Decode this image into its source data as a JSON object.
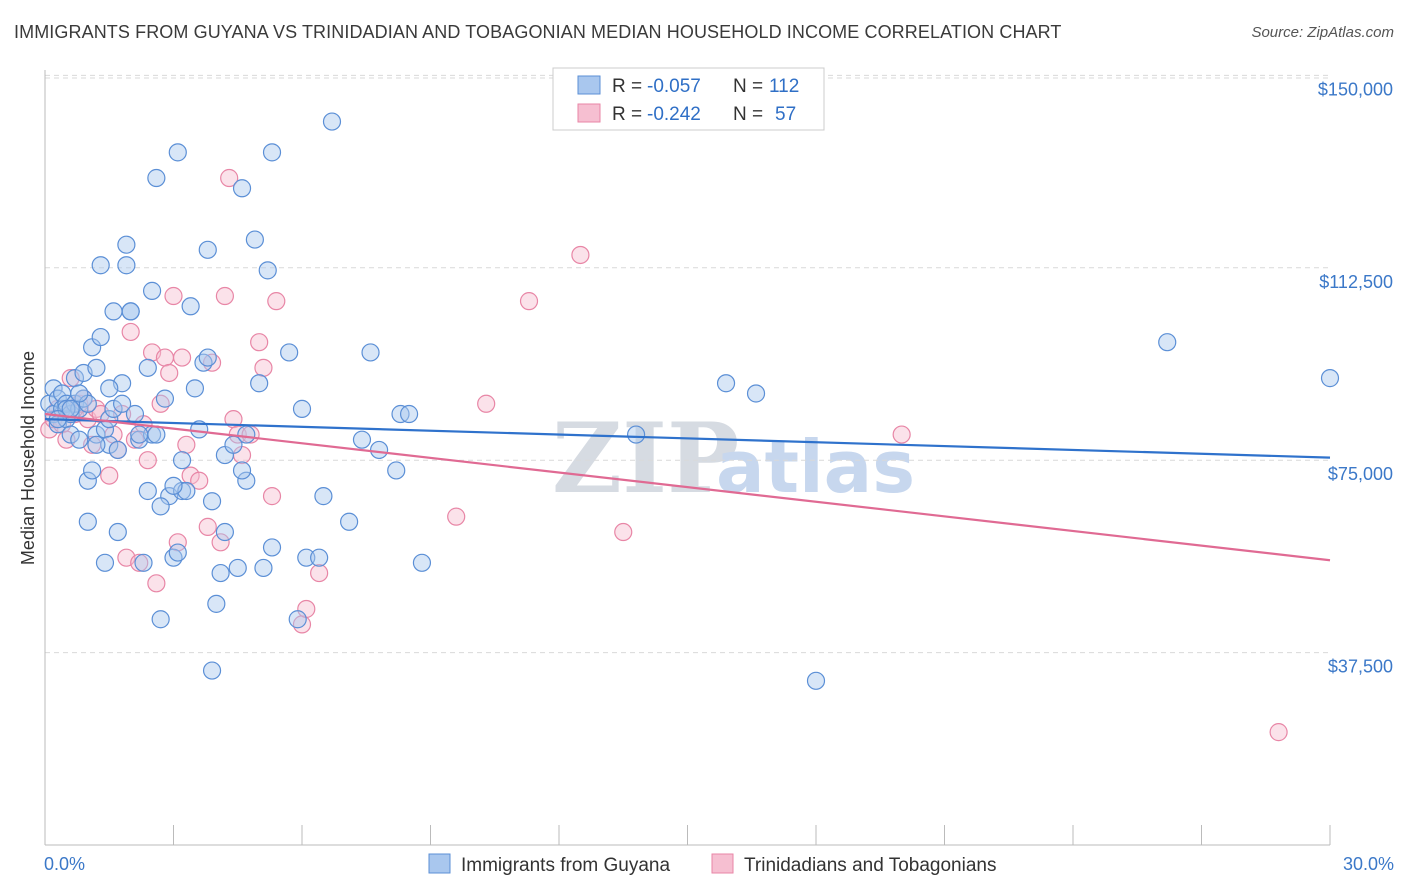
{
  "title": "IMMIGRANTS FROM GUYANA VS TRINIDADIAN AND TOBAGONIAN MEDIAN HOUSEHOLD INCOME CORRELATION CHART",
  "source": "Source: ZipAtlas.com",
  "watermark": {
    "zip": "ZIP",
    "atlas": "atlas"
  },
  "colors": {
    "blue_fill": "#a9c7ee",
    "blue_stroke": "#5b8fd6",
    "blue_line": "#2f72cc",
    "pink_fill": "#f6bfd1",
    "pink_stroke": "#e886a6",
    "pink_line": "#e06a93",
    "tick_text": "#3b78c8",
    "grid": "#d9d9d9"
  },
  "legend": {
    "rows": [
      {
        "r_label": "R =",
        "r_value": "-0.057",
        "n_label": "N =",
        "n_value": "112",
        "color": "blue"
      },
      {
        "r_label": "R =",
        "r_value": "-0.242",
        "n_label": "N =",
        "n_value": "57",
        "color": "pink"
      }
    ]
  },
  "chart_data": {
    "type": "scatter",
    "title": "IMMIGRANTS FROM GUYANA VS TRINIDADIAN AND TOBAGONIAN MEDIAN HOUSEHOLD INCOME CORRELATION CHART",
    "xlabel": "",
    "ylabel": "Median Household Income",
    "xlim": [
      0,
      30
    ],
    "ylim": [
      0,
      153000
    ],
    "x_tick_labels": [
      "0.0%",
      "30.0%"
    ],
    "y_ticks": [
      37500,
      75000,
      112500,
      150000
    ],
    "y_tick_labels": [
      "$37,500",
      "$75,000",
      "$112,500",
      "$150,000"
    ],
    "grid": true,
    "legend_position": "top-center",
    "series": [
      {
        "name": "Immigrants from Guyana",
        "color": "#a9c7ee",
        "trend": {
          "x": [
            0,
            30
          ],
          "y": [
            83000,
            75500
          ]
        },
        "points": [
          [
            0.1,
            86000
          ],
          [
            0.2,
            84000
          ],
          [
            0.2,
            89000
          ],
          [
            0.3,
            87000
          ],
          [
            0.3,
            82000
          ],
          [
            0.4,
            85000
          ],
          [
            0.4,
            88000
          ],
          [
            0.5,
            83000
          ],
          [
            0.5,
            86000
          ],
          [
            0.6,
            80000
          ],
          [
            0.6,
            84000
          ],
          [
            0.7,
            86000
          ],
          [
            0.7,
            91000
          ],
          [
            0.8,
            85000
          ],
          [
            0.8,
            79000
          ],
          [
            0.9,
            87000
          ],
          [
            0.9,
            92000
          ],
          [
            1.0,
            63000
          ],
          [
            1.0,
            71000
          ],
          [
            1.1,
            97000
          ],
          [
            1.1,
            73000
          ],
          [
            1.2,
            80000
          ],
          [
            1.2,
            93000
          ],
          [
            1.3,
            99000
          ],
          [
            1.3,
            113000
          ],
          [
            1.4,
            55000
          ],
          [
            1.4,
            81000
          ],
          [
            1.5,
            78000
          ],
          [
            1.5,
            83000
          ],
          [
            1.6,
            104000
          ],
          [
            1.6,
            85000
          ],
          [
            1.7,
            61000
          ],
          [
            1.7,
            77000
          ],
          [
            1.8,
            86000
          ],
          [
            1.8,
            90000
          ],
          [
            1.9,
            117000
          ],
          [
            1.9,
            113000
          ],
          [
            2.0,
            104000
          ],
          [
            2.0,
            104000
          ],
          [
            2.1,
            84000
          ],
          [
            2.2,
            79000
          ],
          [
            2.3,
            55000
          ],
          [
            2.4,
            69000
          ],
          [
            2.4,
            93000
          ],
          [
            2.5,
            80000
          ],
          [
            2.5,
            108000
          ],
          [
            2.6,
            80000
          ],
          [
            2.6,
            130000
          ],
          [
            2.7,
            44000
          ],
          [
            2.8,
            87000
          ],
          [
            2.9,
            68000
          ],
          [
            3.0,
            56000
          ],
          [
            3.1,
            57000
          ],
          [
            3.1,
            135000
          ],
          [
            3.2,
            69000
          ],
          [
            3.2,
            75000
          ],
          [
            3.3,
            69000
          ],
          [
            3.4,
            105000
          ],
          [
            3.5,
            89000
          ],
          [
            3.6,
            81000
          ],
          [
            3.7,
            94000
          ],
          [
            3.8,
            95000
          ],
          [
            3.8,
            116000
          ],
          [
            3.9,
            67000
          ],
          [
            3.9,
            34000
          ],
          [
            4.0,
            47000
          ],
          [
            4.1,
            53000
          ],
          [
            4.2,
            76000
          ],
          [
            4.2,
            61000
          ],
          [
            4.4,
            78000
          ],
          [
            4.5,
            54000
          ],
          [
            4.6,
            128000
          ],
          [
            4.7,
            80000
          ],
          [
            4.7,
            71000
          ],
          [
            4.9,
            118000
          ],
          [
            5.0,
            90000
          ],
          [
            5.1,
            54000
          ],
          [
            5.2,
            112000
          ],
          [
            5.3,
            58000
          ],
          [
            5.3,
            135000
          ],
          [
            5.7,
            96000
          ],
          [
            5.9,
            44000
          ],
          [
            6.0,
            85000
          ],
          [
            6.1,
            56000
          ],
          [
            6.4,
            56000
          ],
          [
            6.5,
            68000
          ],
          [
            6.7,
            141000
          ],
          [
            7.1,
            63000
          ],
          [
            7.4,
            79000
          ],
          [
            7.6,
            96000
          ],
          [
            7.8,
            77000
          ],
          [
            8.2,
            73000
          ],
          [
            8.3,
            84000
          ],
          [
            8.5,
            84000
          ],
          [
            8.8,
            55000
          ],
          [
            13.8,
            80000
          ],
          [
            15.9,
            90000
          ],
          [
            16.6,
            88000
          ],
          [
            18.0,
            32000
          ],
          [
            26.2,
            98000
          ],
          [
            30.0,
            91000
          ],
          [
            0.5,
            85000
          ],
          [
            1.0,
            86000
          ],
          [
            1.5,
            89000
          ],
          [
            0.3,
            83000
          ],
          [
            0.8,
            88000
          ],
          [
            2.2,
            80000
          ],
          [
            3.0,
            70000
          ],
          [
            2.7,
            66000
          ],
          [
            4.6,
            73000
          ],
          [
            1.2,
            78000
          ],
          [
            0.6,
            85000
          ]
        ]
      },
      {
        "name": "Trinidadians and Tobagonians",
        "color": "#f6bfd1",
        "trend": {
          "x": [
            0,
            30
          ],
          "y": [
            84000,
            55500
          ]
        },
        "points": [
          [
            0.1,
            81000
          ],
          [
            0.2,
            83000
          ],
          [
            0.3,
            85000
          ],
          [
            0.4,
            82000
          ],
          [
            0.5,
            79000
          ],
          [
            0.6,
            91000
          ],
          [
            0.7,
            84000
          ],
          [
            0.8,
            86000
          ],
          [
            0.9,
            87000
          ],
          [
            1.0,
            83000
          ],
          [
            1.1,
            78000
          ],
          [
            1.2,
            85000
          ],
          [
            1.3,
            84000
          ],
          [
            1.5,
            72000
          ],
          [
            1.6,
            80000
          ],
          [
            1.7,
            77000
          ],
          [
            1.8,
            84000
          ],
          [
            1.9,
            56000
          ],
          [
            2.0,
            100000
          ],
          [
            2.1,
            79000
          ],
          [
            2.2,
            55000
          ],
          [
            2.3,
            82000
          ],
          [
            2.4,
            75000
          ],
          [
            2.5,
            96000
          ],
          [
            2.6,
            51000
          ],
          [
            2.7,
            86000
          ],
          [
            2.8,
            95000
          ],
          [
            2.9,
            92000
          ],
          [
            3.0,
            107000
          ],
          [
            3.1,
            59000
          ],
          [
            3.2,
            95000
          ],
          [
            3.3,
            78000
          ],
          [
            3.4,
            72000
          ],
          [
            3.6,
            71000
          ],
          [
            3.8,
            62000
          ],
          [
            3.9,
            94000
          ],
          [
            4.1,
            59000
          ],
          [
            4.2,
            107000
          ],
          [
            4.3,
            130000
          ],
          [
            4.4,
            83000
          ],
          [
            4.5,
            80000
          ],
          [
            4.6,
            76000
          ],
          [
            4.8,
            80000
          ],
          [
            5.0,
            98000
          ],
          [
            5.1,
            93000
          ],
          [
            5.3,
            68000
          ],
          [
            5.4,
            106000
          ],
          [
            6.0,
            43000
          ],
          [
            6.1,
            46000
          ],
          [
            6.4,
            53000
          ],
          [
            9.6,
            64000
          ],
          [
            10.3,
            86000
          ],
          [
            11.3,
            106000
          ],
          [
            12.5,
            115000
          ],
          [
            13.5,
            61000
          ],
          [
            20.0,
            80000
          ],
          [
            28.8,
            22000
          ]
        ]
      }
    ]
  },
  "bottom_legend": [
    {
      "label": "Immigrants from Guyana",
      "color": "blue"
    },
    {
      "label": "Trinidadians and Tobagonians",
      "color": "pink"
    }
  ]
}
